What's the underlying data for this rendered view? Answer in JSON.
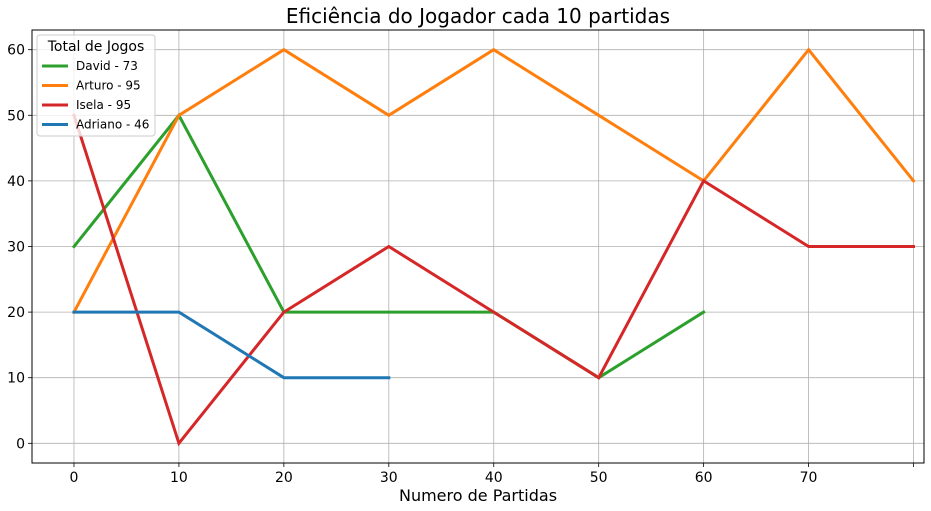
{
  "chart_data": {
    "type": "line",
    "title": "Eficiência do Jogador cada 10 partidas",
    "xlabel": "Numero de Partidas",
    "ylabel": "",
    "xlim": [
      -4,
      81
    ],
    "ylim": [
      -3,
      63
    ],
    "x_ticks": [
      0,
      10,
      20,
      30,
      40,
      50,
      60,
      70,
      80
    ],
    "x_tick_labels": [
      "0",
      "10",
      "20",
      "30",
      "40",
      "50",
      "60",
      "70",
      ""
    ],
    "y_ticks": [
      0,
      10,
      20,
      30,
      40,
      50,
      60
    ],
    "y_tick_labels": [
      "0",
      "10",
      "20",
      "30",
      "40",
      "50",
      "60"
    ],
    "grid": true,
    "legend": {
      "title": "Total de Jogos",
      "placement": "upper-left"
    },
    "series": [
      {
        "name": "David - 73",
        "color": "#2ca02c",
        "x": [
          0,
          10,
          20,
          30,
          40,
          50,
          60
        ],
        "values": [
          30,
          50,
          20,
          20,
          20,
          10,
          20
        ]
      },
      {
        "name": "Arturo - 95",
        "color": "#ff7f0e",
        "x": [
          0,
          10,
          20,
          30,
          40,
          50,
          60,
          70,
          80
        ],
        "values": [
          20,
          50,
          60,
          50,
          60,
          50,
          40,
          60,
          40
        ]
      },
      {
        "name": "Isela - 95",
        "color": "#d62728",
        "x": [
          0,
          10,
          20,
          30,
          40,
          50,
          60,
          70,
          80
        ],
        "values": [
          50,
          0,
          20,
          30,
          20,
          10,
          40,
          30,
          30
        ]
      },
      {
        "name": "Adriano - 46",
        "color": "#1f77b4",
        "x": [
          0,
          10,
          20,
          30
        ],
        "values": [
          20,
          20,
          10,
          10
        ]
      }
    ]
  }
}
